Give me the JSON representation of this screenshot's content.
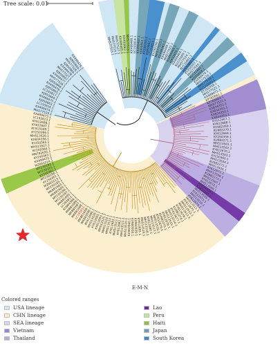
{
  "scale_label": "Tree scale: 0.01",
  "caption": "E-M-N",
  "legend": {
    "title": "Colored ranges",
    "items": [
      {
        "label": "USA lineage",
        "color": "#cfe6f5"
      },
      {
        "label": "CHN lineage",
        "color": "#fbefcf"
      },
      {
        "label": "SEA lineage",
        "color": "#d8d2ef"
      },
      {
        "label": "Vietnam",
        "color": "#9a86cc"
      },
      {
        "label": "Thailand",
        "color": "#b9aae0"
      },
      {
        "label": "Lao",
        "color": "#6a2aa0"
      },
      {
        "label": "Peru",
        "color": "#c5e39a"
      },
      {
        "label": "Haiti",
        "color": "#8fc33a"
      },
      {
        "label": "Japan",
        "color": "#6c9fb0"
      },
      {
        "label": "South Korea",
        "color": "#3a86c8"
      }
    ]
  },
  "icons": {
    "marker": "red-star-icon"
  },
  "highlight_color": "#d32f2f",
  "tree_colors": {
    "usa_branch": "#1a1a1a",
    "chn_branch": "#c8860f",
    "sea_branch": "#b0607a"
  },
  "leaves": [
    "MH577515.1",
    "MH577514.1",
    "MH577517.1",
    "KX499465.1",
    "KX499462.1",
    "MH577519.1",
    "KX499466.1",
    "LC193814.1",
    "KX499467.1",
    "KJ950861.1",
    "KY250355.1",
    "KJ950862.1",
    "LC193815.1",
    "KY250356.1",
    "MH577523.1",
    "KX499463.1",
    "KX499469.1",
    "MH577522.1",
    "KX499468.1",
    "KJ950859.1",
    "KX499464.1",
    "KU131600.1",
    "MH577524.1",
    "KU131601.1",
    "KJ950860.1",
    "KY250357.1",
    "MH577520.1",
    "KU131602.1",
    "KJ950858.1",
    "KX499470.1",
    "MH577516.1",
    "MH577518.1",
    "KU131603.1",
    "KY250358.1",
    "MH577521.1",
    "KX499471.1",
    "KP765661.1",
    "KP765662.1",
    "MH577521.1",
    "KX834352.1",
    "KX834351.1",
    "KX834350.1",
    "KX834353.1",
    "KY612667.1",
    "KY612668.1",
    "KU982269.1",
    "KU982270.1",
    "KY612669.1",
    "KY250359.1",
    "KU982271.1",
    "MH513501.1",
    "MH513502.1",
    "KY612670.1",
    "MH513503.1",
    "KY250360.1",
    "MH513504.1",
    "KU982272.1",
    "MH513505.1",
    "KY612671.1",
    "MH513506.1",
    "KU982273.1",
    "MH513507.1",
    "KY612672.1",
    "MH513508.1",
    "KX834354.1",
    "KX834355.1",
    "MH513509.1",
    "KY612673.1",
    "MH513510.1",
    "KY612674.1",
    "MH513511.1",
    "KY612675.1",
    "MH513512.1",
    "MH513513.1",
    "KY612676.1",
    "KU982274.1",
    "KY612677.1",
    "MH513514.1",
    "MH513515.1",
    "KY612678.1",
    "KU982275.1",
    "KY612679.1",
    "MH513516.1",
    "MH513517.1",
    "KY612680.1",
    "MH513518.1",
    "MH513519.1",
    "KY612681.1",
    "KX960939.1",
    "KX960938.1",
    "KX960940.1",
    "MH513520.1",
    "MH513521.1",
    "KY612682.1",
    "MH513522.1",
    "KY612683.1",
    "MH513523.1",
    "MH513524.1",
    "MH513525.1",
    "KY612684.1",
    "KY612685.1",
    "MH513526.1",
    "KY612686.1",
    "MK881690.1",
    "MK881689.1",
    "LC193811.1",
    "MK881688.1",
    "MK881687.1",
    "MK881686.1",
    "KU984566.1",
    "LC193812.1",
    "MK881685.1",
    "MT230187.1",
    "MT230188.1",
    "MK881684.1",
    "MK881683.1",
    "MT230189.1",
    "MZ061213.1",
    "KY250361.1",
    "MT230190.1",
    "KY250362.1",
    "MT230191.1",
    "MT230192.1",
    "MZ061214.1",
    "KX499472.1",
    "KY250363.1",
    "MN782655.1",
    "KY250364.1",
    "MH513527.1",
    "KY250365.1",
    "KX834356.1",
    "MH513528.1",
    "KY250366.1",
    "KC915049.1",
    "KY612687.1",
    "KY612688.1",
    "LC193813.1",
    "KX499473.1",
    "MH577525.1",
    "KX499474.1",
    "LC193816.1",
    "KJ950863.1",
    "KX499475.1",
    "KJ950864.1",
    "LC193817.1",
    "KJ950865.1",
    "KX499476.1",
    "KJ950866.1",
    "MH577526.1",
    "KX499477.1",
    "KJ950867.1",
    "MH577527.1",
    "KX499478.1",
    "KJ950868.1",
    "MH577528.1",
    "KJ950869.1",
    "KX499479.1"
  ],
  "highlighted_leaf": "LC193811.1"
}
